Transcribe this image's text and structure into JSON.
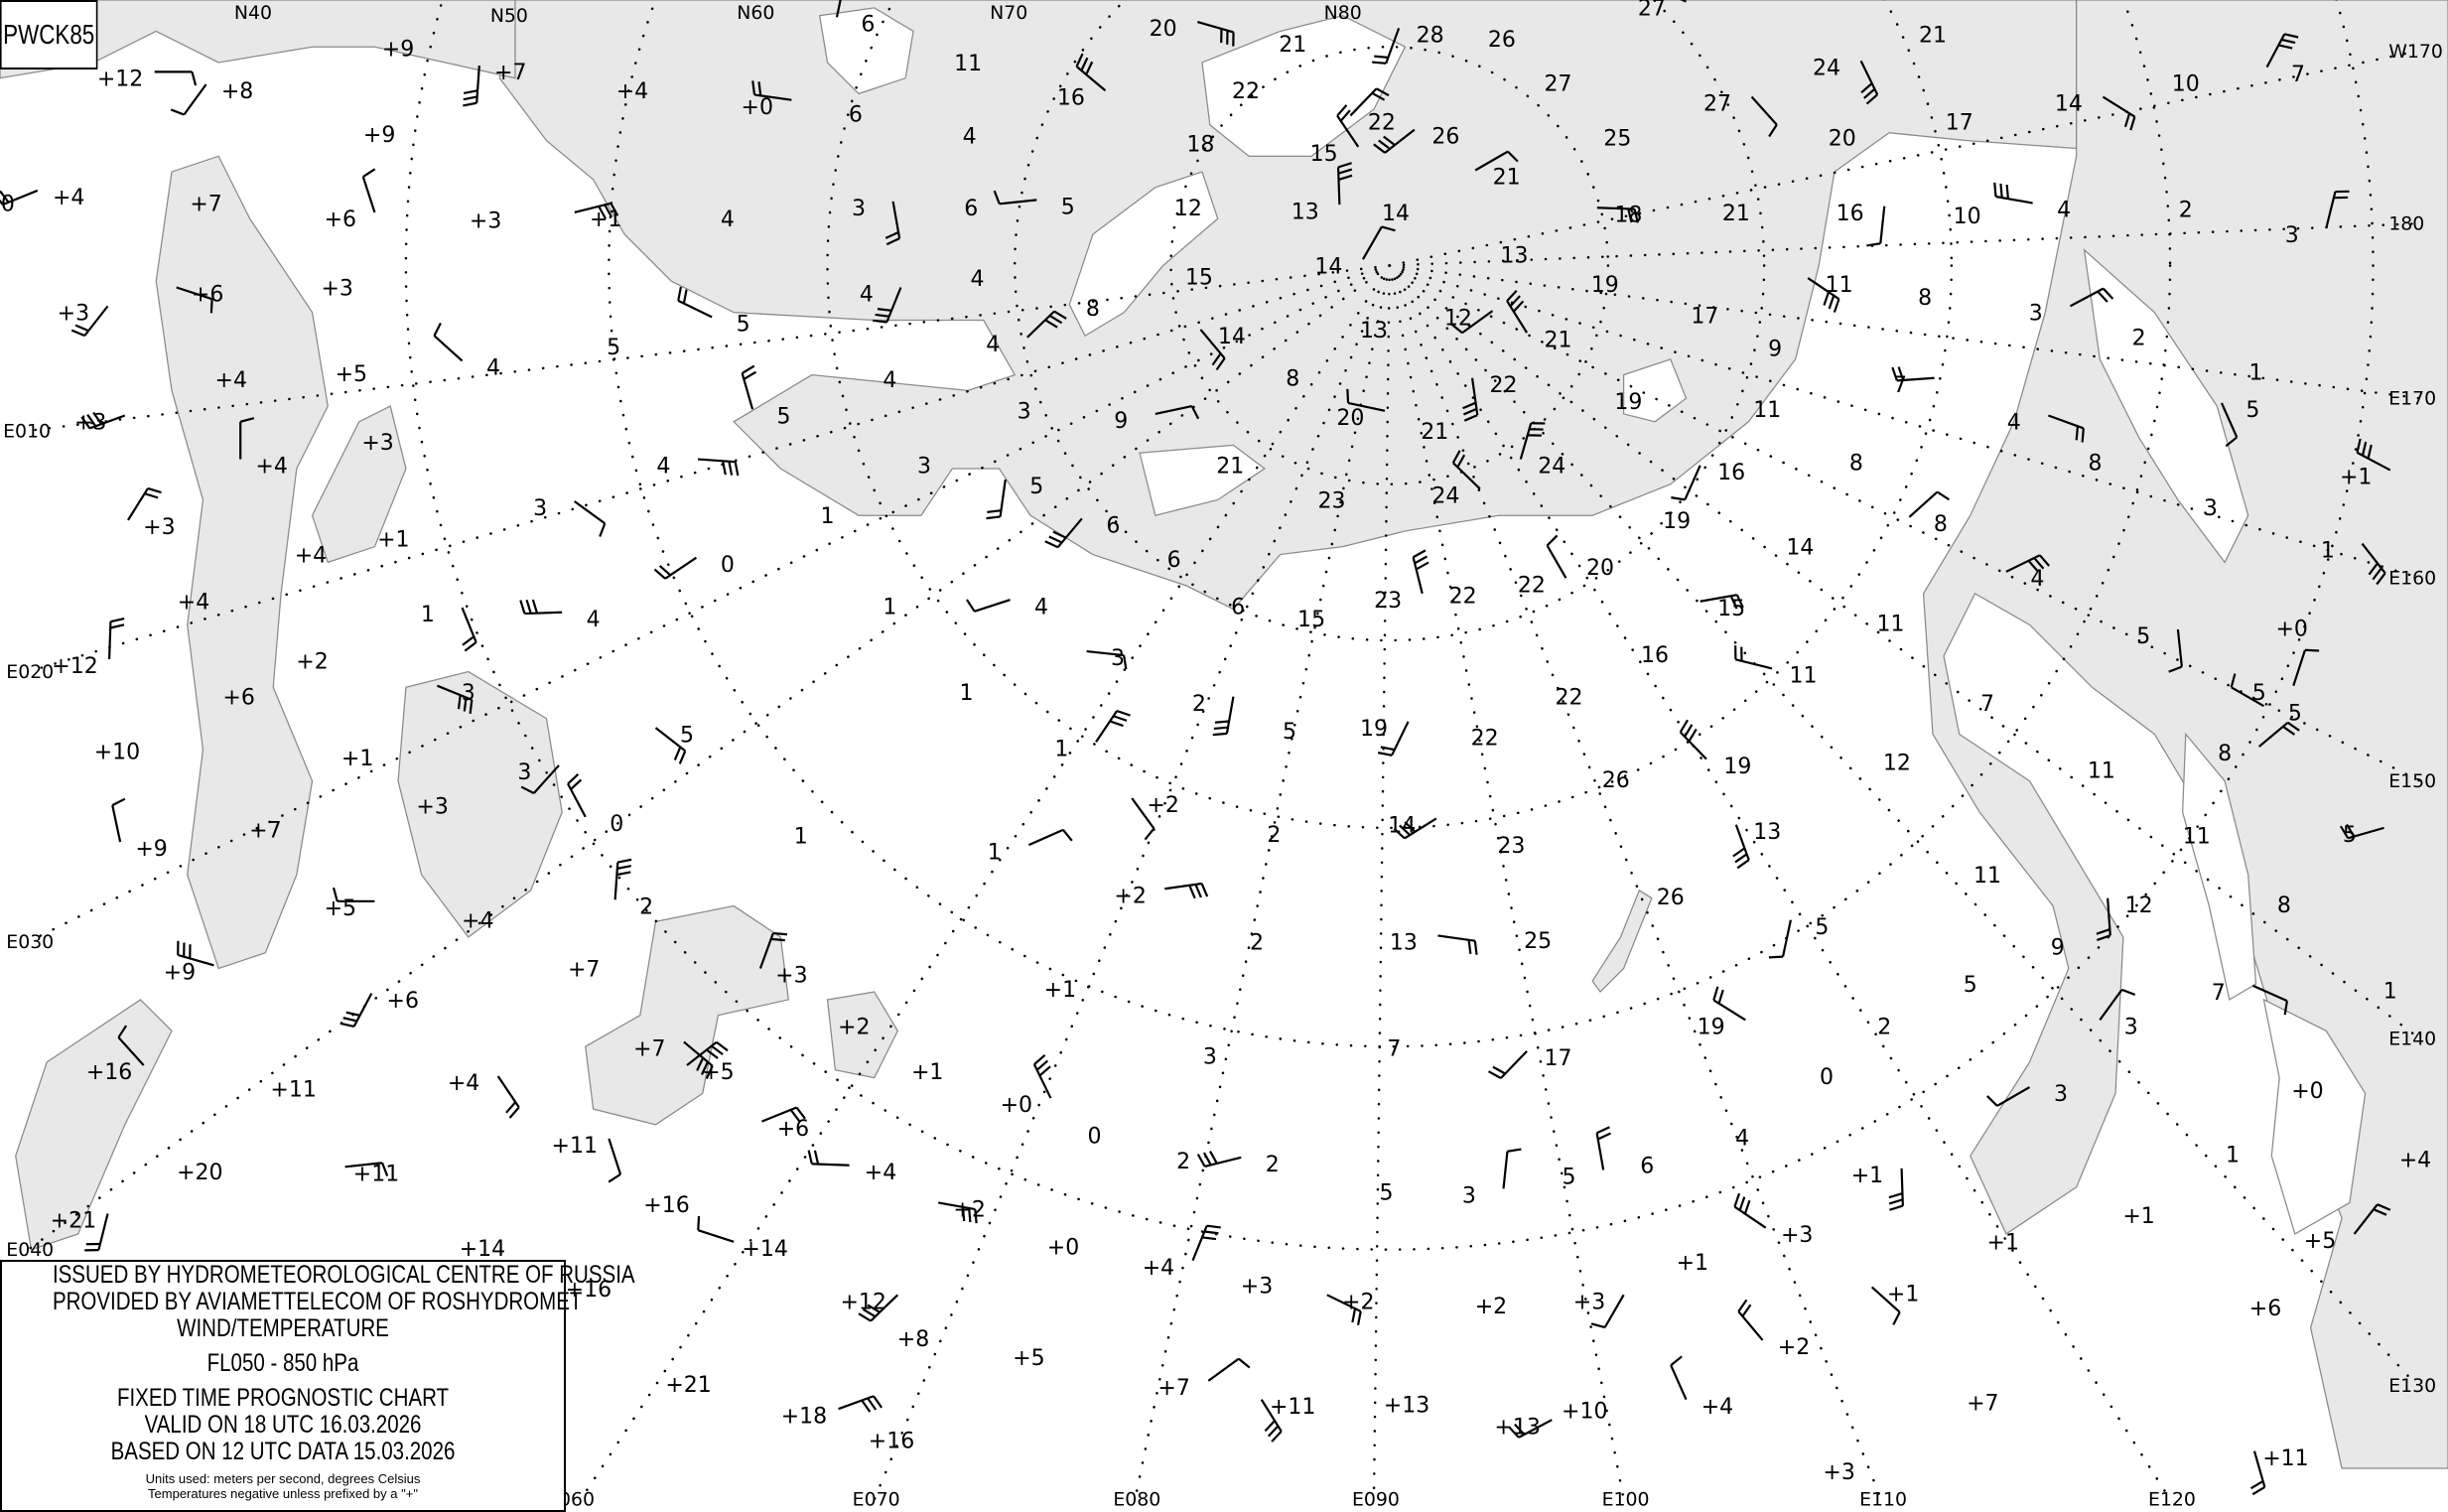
{
  "chart_code": "PWCK85",
  "legend": {
    "line1": "ISSUED BY HYDROMETEOROLOGICAL CENTRE OF RUSSIA",
    "line2": "PROVIDED BY AVIAMETTELECOM OF ROSHYDROMET",
    "line3": "WIND/TEMPERATURE",
    "level": "FL050 - 850 hPa",
    "chart_type": "FIXED TIME PROGNOSTIC CHART",
    "valid": "VALID ON 18 UTC 16.03.2026",
    "based": "BASED ON 12 UTC DATA 15.03.2026",
    "units": "Units used: meters per second, degrees Celsius",
    "note": "Temperatures negative unless prefixed by a \"+\""
  },
  "colors": {
    "sea": "#e8e8e8",
    "land": "#ffffff",
    "coast": "#8a8a8a",
    "ink": "#000000"
  },
  "grid_labels": {
    "latitude": [
      "N40",
      "N50",
      "N60",
      "N70",
      "N80"
    ],
    "longitude": [
      "E010",
      "E020",
      "E030",
      "E040",
      "060",
      "E070",
      "E080",
      "E090",
      "E100",
      "E110",
      "E120",
      "E130",
      "E140",
      "E150",
      "E160",
      "E170",
      "180",
      "W170"
    ]
  },
  "temperatures": [
    "+12",
    "+9",
    "+7",
    "+4",
    "+0",
    "6",
    "6",
    "11",
    "20",
    "21",
    "28",
    "26",
    "27",
    "21",
    "7",
    "10",
    "14",
    "17",
    "+8",
    "+9",
    "16",
    "22",
    "22",
    "27",
    "27",
    "25",
    "26",
    "18",
    "15",
    "4",
    "21",
    "20",
    "24",
    "0",
    "+4",
    "+7",
    "+6",
    "+3",
    "+1",
    "4",
    "3",
    "6",
    "5",
    "12",
    "13",
    "14",
    "18",
    "21",
    "16",
    "10",
    "4",
    "2",
    "3",
    "13",
    "+6",
    "+3",
    "4",
    "4",
    "5",
    "15",
    "14",
    "19",
    "11",
    "8",
    "+3",
    "+5",
    "4",
    "5",
    "4",
    "8",
    "14",
    "13",
    "12",
    "17",
    "21",
    "9",
    "3",
    "2",
    "5",
    "+4",
    "+3",
    "4",
    "5",
    "3",
    "9",
    "8",
    "22",
    "19",
    "7",
    "1",
    "+4",
    "+3",
    "4",
    "3",
    "5",
    "21",
    "20",
    "21",
    "24",
    "11",
    "4",
    "8",
    "16",
    "8",
    "+1",
    "3",
    "+3",
    "+1",
    "3",
    "1",
    "6",
    "23",
    "24",
    "19",
    "8",
    "14",
    "1",
    "+4",
    "0",
    "6",
    "22",
    "20",
    "4",
    "+4",
    "1",
    "1",
    "4",
    "6",
    "23",
    "22",
    "15",
    "+0",
    "5",
    "11",
    "4",
    "15",
    "+12",
    "+2",
    "3",
    "1",
    "2",
    "22",
    "11",
    "16",
    "5",
    "+6",
    "3",
    "5",
    "19",
    "22",
    "5",
    "7",
    "1",
    "+10",
    "5",
    "+1",
    "3",
    "26",
    "19",
    "12",
    "8",
    "11",
    "+2",
    "2",
    "14",
    "+3",
    "0",
    "1",
    "1",
    "23",
    "13",
    "11",
    "5",
    "+7",
    "+9",
    "11",
    "+2",
    "26",
    "12",
    "8",
    "+5",
    "+4",
    "2",
    "2",
    "13",
    "25",
    "5",
    "9",
    "+9",
    "+7",
    "+3",
    "+1",
    "7",
    "1",
    "+6",
    "5",
    "19",
    "2",
    "3",
    "+2",
    "+7",
    "7",
    "17",
    "3",
    "+16",
    "+1",
    "+5",
    "+11",
    "+4",
    "0",
    "3",
    "+0",
    "+0",
    "4",
    "+6",
    "0",
    "+11",
    "2",
    "2",
    "6",
    "5",
    "+20",
    "+11",
    "1",
    "+1",
    "+4",
    "+4",
    "5",
    "3",
    "+16",
    "+2",
    "+1",
    "+21",
    "+14",
    "+14",
    "+0",
    "+4",
    "+3",
    "+2",
    "+2",
    "+3",
    "+1",
    "+3",
    "+1",
    "+5",
    "+6",
    "+1",
    "+16",
    "+12",
    "+8",
    "+2",
    "+5",
    "+7",
    "+21",
    "+11",
    "+13",
    "+13",
    "+10",
    "+4",
    "+7",
    "+18",
    "+16",
    "+11",
    "+3"
  ]
}
